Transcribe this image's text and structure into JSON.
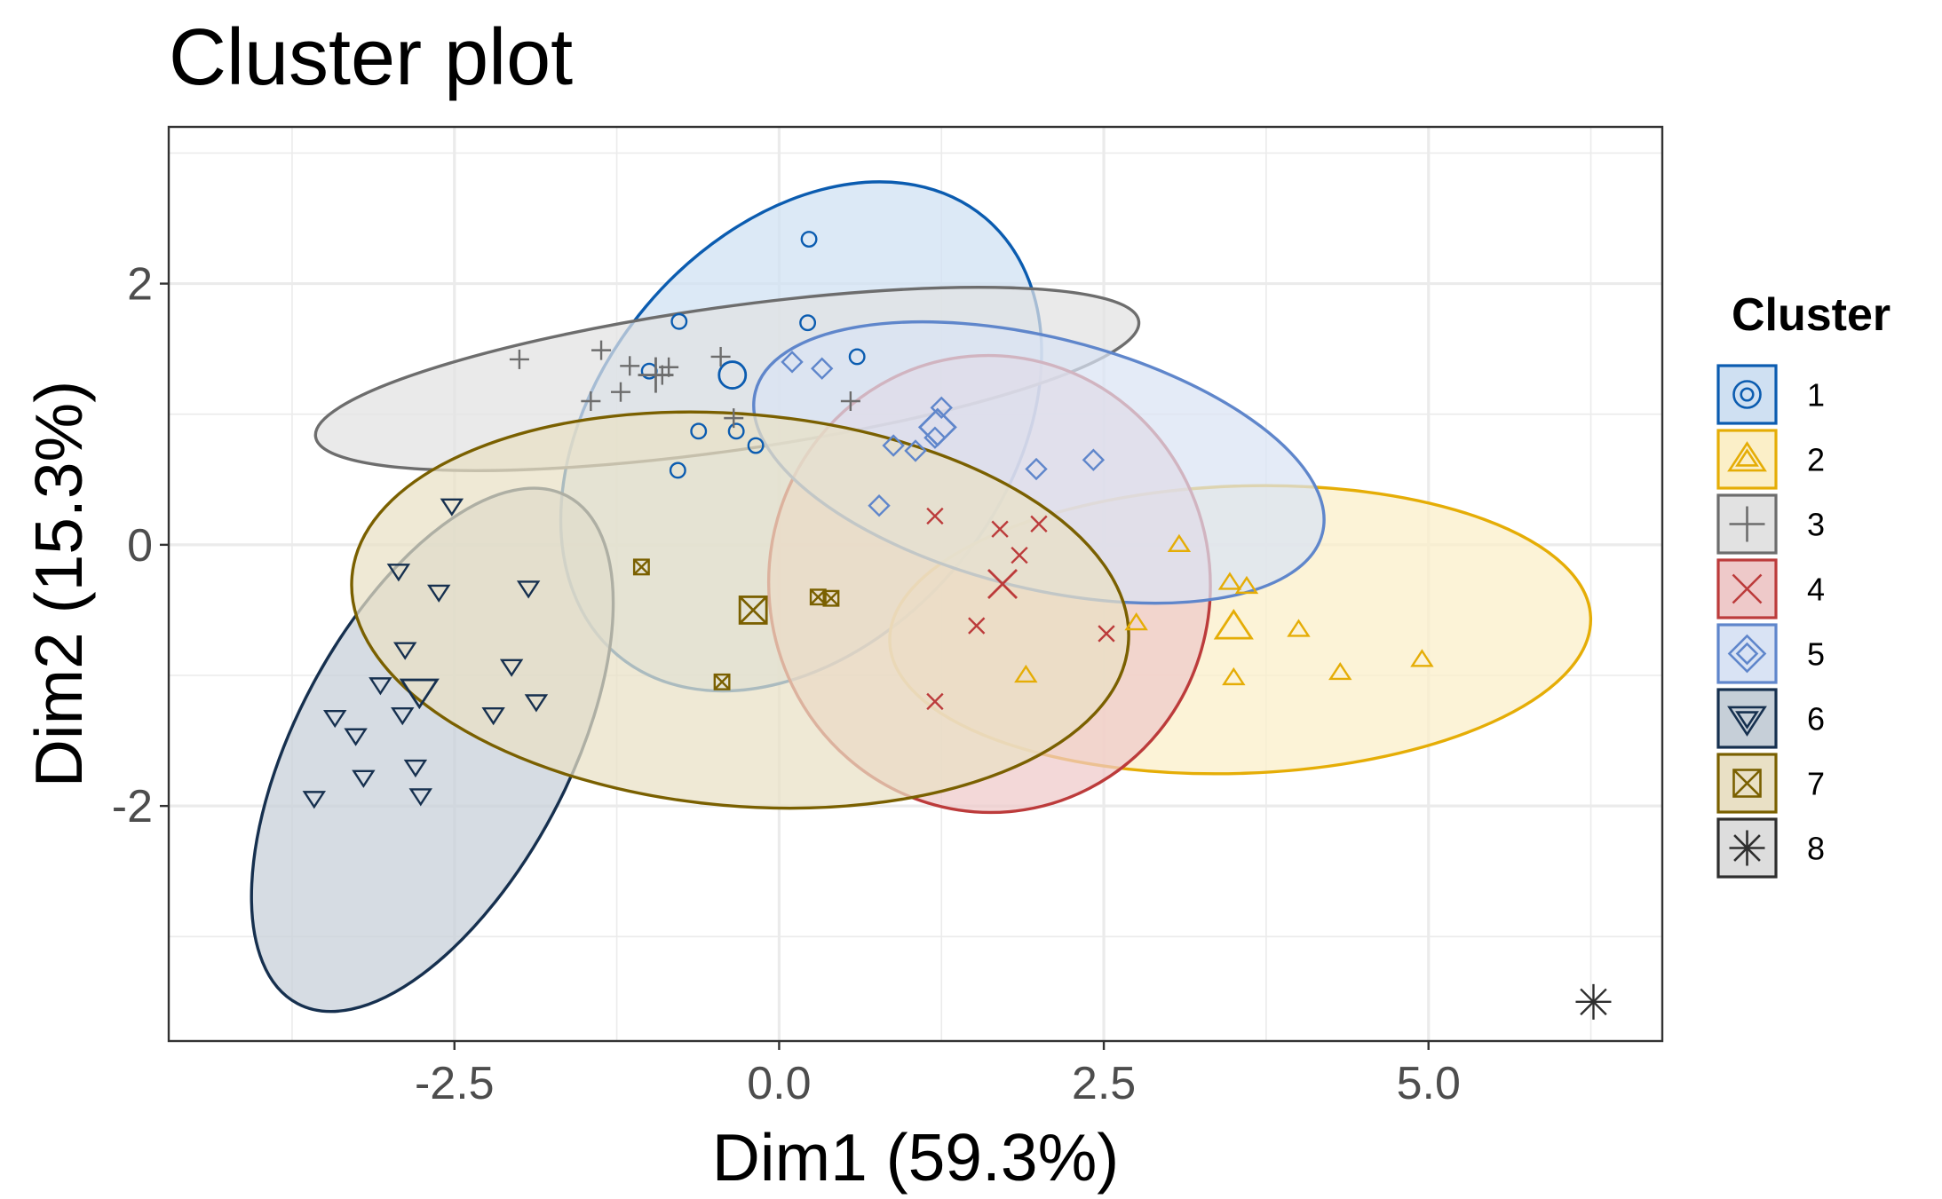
{
  "chart_data": {
    "type": "scatter",
    "title": "Cluster plot",
    "xlabel": "Dim1 (59.3%)",
    "ylabel": "Dim2 (15.3%)",
    "xlim": [
      -4.7,
      6.8
    ],
    "ylim": [
      -3.8,
      3.2
    ],
    "xticks": [
      -2.5,
      0.0,
      2.5,
      5.0
    ],
    "xtick_labels": [
      "-2.5",
      "0.0",
      "2.5",
      "5.0"
    ],
    "yticks": [
      -2,
      0,
      2
    ],
    "ytick_labels": [
      "-2",
      "0",
      "2"
    ],
    "grid": true,
    "legend": {
      "title": "Cluster",
      "position": "right"
    },
    "series": [
      {
        "name": "1",
        "color": "#0B5CB0",
        "fill": "#CFE0F2",
        "shape": "circle",
        "center": [
          -0.36,
          1.3
        ],
        "points": [
          [
            0.23,
            2.34
          ],
          [
            0.22,
            1.7
          ],
          [
            -0.77,
            1.71
          ],
          [
            0.6,
            1.44
          ],
          [
            -1.0,
            1.33
          ],
          [
            -0.62,
            0.87
          ],
          [
            -0.33,
            0.87
          ],
          [
            -0.18,
            0.76
          ],
          [
            -0.78,
            0.57
          ]
        ],
        "ellipse": {
          "cx": 0.17,
          "cy": 0.83,
          "rx": 2.2,
          "ry": 1.55,
          "angle": -50
        }
      },
      {
        "name": "2",
        "color": "#E5AD06",
        "fill": "#FBEFC8",
        "shape": "triangle",
        "center": [
          3.5,
          -0.63
        ],
        "points": [
          [
            3.08,
            0.0
          ],
          [
            3.47,
            -0.29
          ],
          [
            3.6,
            -0.32
          ],
          [
            2.75,
            -0.6
          ],
          [
            4.0,
            -0.65
          ],
          [
            4.95,
            -0.88
          ],
          [
            1.9,
            -1.0
          ],
          [
            3.5,
            -1.02
          ],
          [
            4.32,
            -0.98
          ]
        ],
        "ellipse": {
          "cx": 3.55,
          "cy": -0.65,
          "rx": 2.7,
          "ry": 1.1,
          "angle": -2
        }
      },
      {
        "name": "3",
        "color": "#6D6D6D",
        "fill": "#E2E2E2",
        "shape": "plus",
        "center": [
          -0.95,
          1.3
        ],
        "points": [
          [
            -2.0,
            1.42
          ],
          [
            -1.37,
            1.49
          ],
          [
            -0.45,
            1.44
          ],
          [
            -1.15,
            1.37
          ],
          [
            -0.9,
            1.3
          ],
          [
            -0.85,
            1.36
          ],
          [
            -1.45,
            1.1
          ],
          [
            -1.22,
            1.17
          ],
          [
            0.55,
            1.1
          ],
          [
            -0.35,
            0.97
          ]
        ],
        "ellipse": {
          "cx": -0.4,
          "cy": 1.27,
          "rx": 3.2,
          "ry": 0.55,
          "angle": -8
        }
      },
      {
        "name": "4",
        "color": "#BC3B3B",
        "fill": "#EEC9C9",
        "shape": "cross",
        "center": [
          1.72,
          -0.3
        ],
        "points": [
          [
            1.2,
            0.22
          ],
          [
            2.0,
            0.16
          ],
          [
            1.7,
            0.12
          ],
          [
            1.85,
            -0.08
          ],
          [
            1.52,
            -0.62
          ],
          [
            2.52,
            -0.68
          ],
          [
            1.2,
            -1.2
          ]
        ],
        "ellipse": {
          "cx": 1.62,
          "cy": -0.3,
          "rx": 1.7,
          "ry": 1.75,
          "angle": -5
        }
      },
      {
        "name": "5",
        "color": "#5F86CB",
        "fill": "#D9E3F4",
        "shape": "diamond",
        "center": [
          1.22,
          0.9
        ],
        "points": [
          [
            0.1,
            1.4
          ],
          [
            0.33,
            1.35
          ],
          [
            1.25,
            1.05
          ],
          [
            1.2,
            0.82
          ],
          [
            0.88,
            0.76
          ],
          [
            1.05,
            0.72
          ],
          [
            1.98,
            0.58
          ],
          [
            2.42,
            0.65
          ],
          [
            0.77,
            0.3
          ]
        ],
        "ellipse": {
          "cx": 2.0,
          "cy": 0.63,
          "rx": 2.25,
          "ry": 0.96,
          "angle": 14
        }
      },
      {
        "name": "6",
        "color": "#16304F",
        "fill": "#C6CFD8",
        "shape": "triangle-down",
        "center": [
          -2.77,
          -1.12
        ],
        "points": [
          [
            -2.52,
            0.3
          ],
          [
            -2.93,
            -0.2
          ],
          [
            -2.62,
            -0.36
          ],
          [
            -1.93,
            -0.33
          ],
          [
            -2.88,
            -0.8
          ],
          [
            -2.06,
            -0.93
          ],
          [
            -3.07,
            -1.07
          ],
          [
            -2.2,
            -1.3
          ],
          [
            -1.87,
            -1.2
          ],
          [
            -3.42,
            -1.32
          ],
          [
            -3.26,
            -1.46
          ],
          [
            -2.9,
            -1.3
          ],
          [
            -3.2,
            -1.78
          ],
          [
            -2.8,
            -1.7
          ],
          [
            -2.76,
            -1.92
          ],
          [
            -3.58,
            -1.94
          ]
        ],
        "ellipse": {
          "cx": -2.67,
          "cy": -1.57,
          "rx": 1.05,
          "ry": 2.2,
          "angle": 28
        }
      },
      {
        "name": "7",
        "color": "#7A6000",
        "fill": "#E9E0C5",
        "shape": "square-x",
        "center": [
          -0.2,
          -0.5
        ],
        "points": [
          [
            -1.06,
            -0.17
          ],
          [
            0.3,
            -0.4
          ],
          [
            0.4,
            -0.41
          ],
          [
            -0.44,
            -1.05
          ]
        ],
        "ellipse": {
          "cx": -0.3,
          "cy": -0.5,
          "rx": 3.0,
          "ry": 1.5,
          "angle": 5
        }
      },
      {
        "name": "8",
        "color": "#2E2E2E",
        "fill": "#DDDDDD",
        "shape": "asterisk",
        "center": null,
        "points": [
          [
            6.27,
            -3.5
          ]
        ],
        "ellipse": null
      }
    ]
  }
}
